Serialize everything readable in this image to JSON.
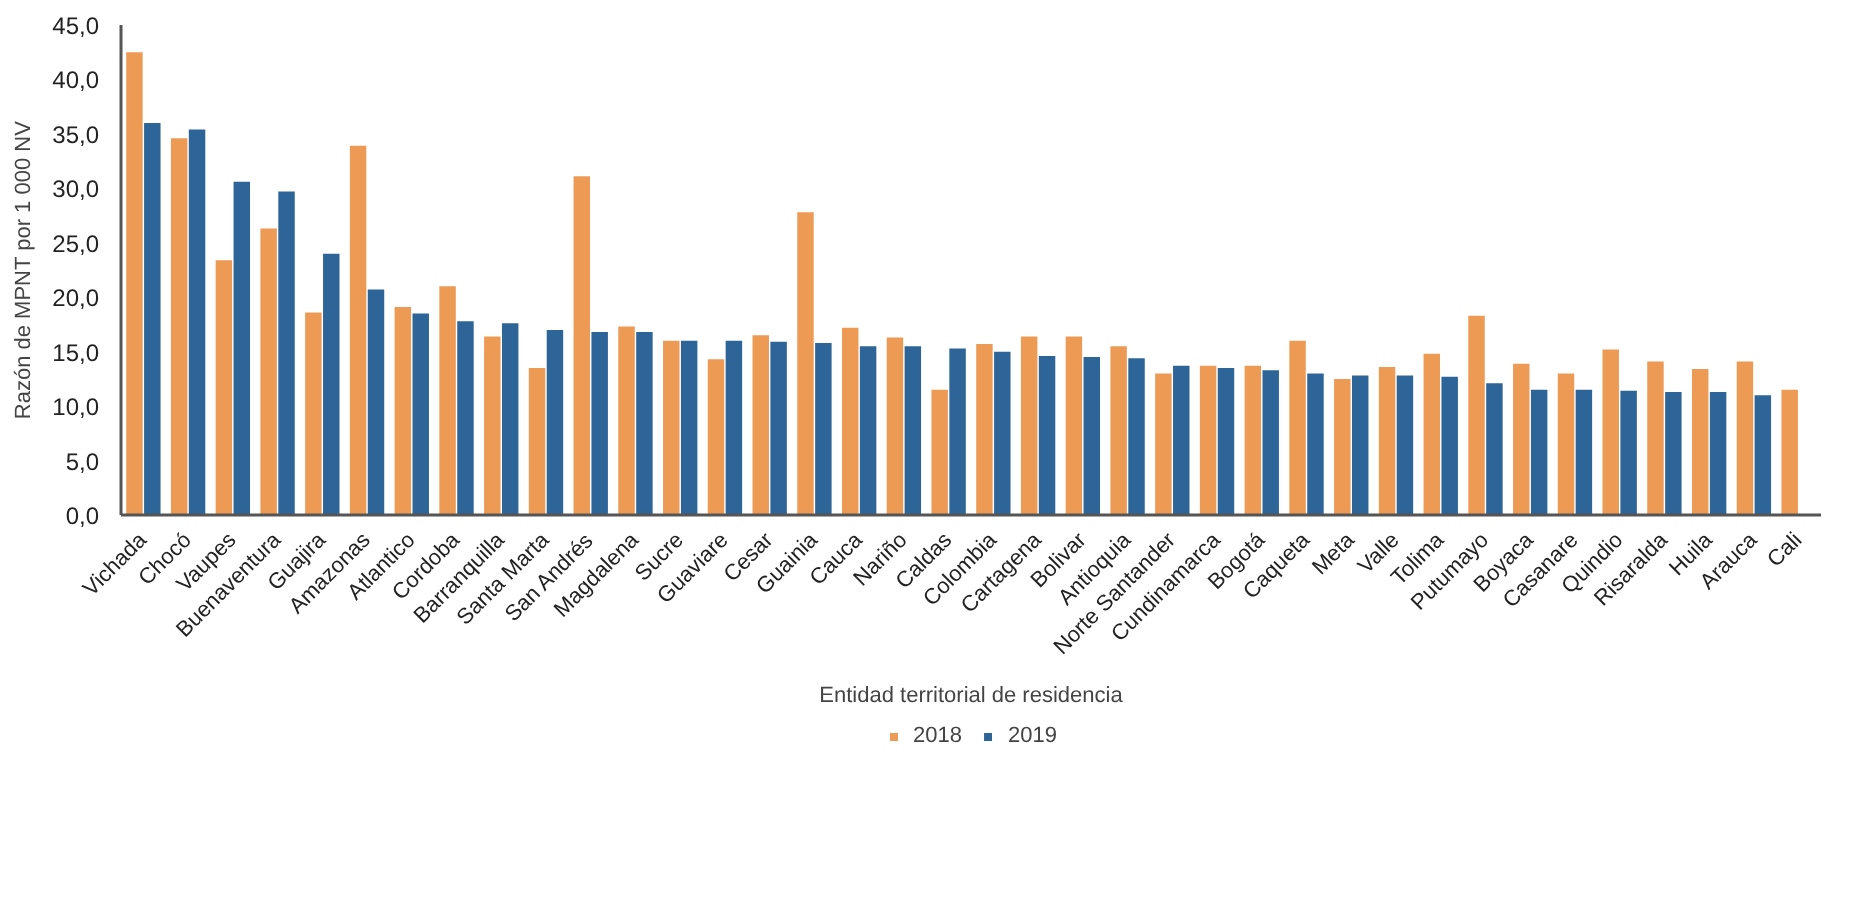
{
  "chart_data": {
    "type": "bar",
    "xlabel": "Entidad territorial de residencia",
    "ylabel": "Razón de MPNT por 1 000 NV",
    "categories": [
      "Vichada",
      "Chocó",
      "Vaupes",
      "Buenaventura",
      "Guajira",
      "Amazonas",
      "Atlantico",
      "Cordoba",
      "Barranquilla",
      "Santa Marta",
      "San Andrés",
      "Magdalena",
      "Sucre",
      "Guaviare",
      "Cesar",
      "Guainia",
      "Cauca",
      "Nariño",
      "Caldas",
      "Colombia",
      "Cartagena",
      "Bolivar",
      "Antioquia",
      "Norte Santander",
      "Cundinamarca",
      "Bogotá",
      "Caqueta",
      "Meta",
      "Valle",
      "Tolima",
      "Putumayo",
      "Boyaca",
      "Casanare",
      "Quindio",
      "Risaralda",
      "Huila",
      "Arauca",
      "Cali"
    ],
    "series": [
      {
        "name": "2018",
        "color": "#ed9a55",
        "values": [
          42.5,
          34.6,
          23.4,
          26.3,
          18.6,
          33.9,
          19.1,
          21.0,
          16.4,
          13.5,
          31.1,
          17.3,
          16.0,
          14.3,
          16.5,
          27.8,
          17.2,
          16.3,
          11.5,
          15.7,
          16.4,
          16.4,
          15.5,
          13.0,
          13.7,
          13.7,
          16.0,
          12.5,
          13.6,
          14.8,
          18.3,
          13.9,
          13.0,
          15.2,
          14.1,
          13.4,
          14.1,
          11.5
        ]
      },
      {
        "name": "2019",
        "color": "#2e6599",
        "values": [
          36.0,
          35.4,
          30.6,
          29.7,
          24.0,
          20.7,
          18.5,
          17.8,
          17.6,
          17.0,
          16.8,
          16.8,
          16.0,
          16.0,
          15.9,
          15.8,
          15.5,
          15.5,
          15.3,
          15.0,
          14.6,
          14.5,
          14.4,
          13.7,
          13.5,
          13.3,
          13.0,
          12.8,
          12.8,
          12.7,
          12.1,
          11.5,
          11.5,
          11.4,
          11.3,
          11.3,
          11.0,
          null
        ]
      }
    ],
    "ylim": [
      0,
      45
    ],
    "yticks": [
      {
        "value": 0,
        "label": "0,0"
      },
      {
        "value": 5,
        "label": "5,0"
      },
      {
        "value": 10,
        "label": "10,0"
      },
      {
        "value": 15,
        "label": "15,0"
      },
      {
        "value": 20,
        "label": "20,0"
      },
      {
        "value": 25,
        "label": "25,0"
      },
      {
        "value": 30,
        "label": "30,0"
      },
      {
        "value": 35,
        "label": "35,0"
      },
      {
        "value": 40,
        "label": "40,0"
      },
      {
        "value": 45,
        "label": "45,0"
      }
    ],
    "grid": false,
    "legend": "bottom"
  }
}
